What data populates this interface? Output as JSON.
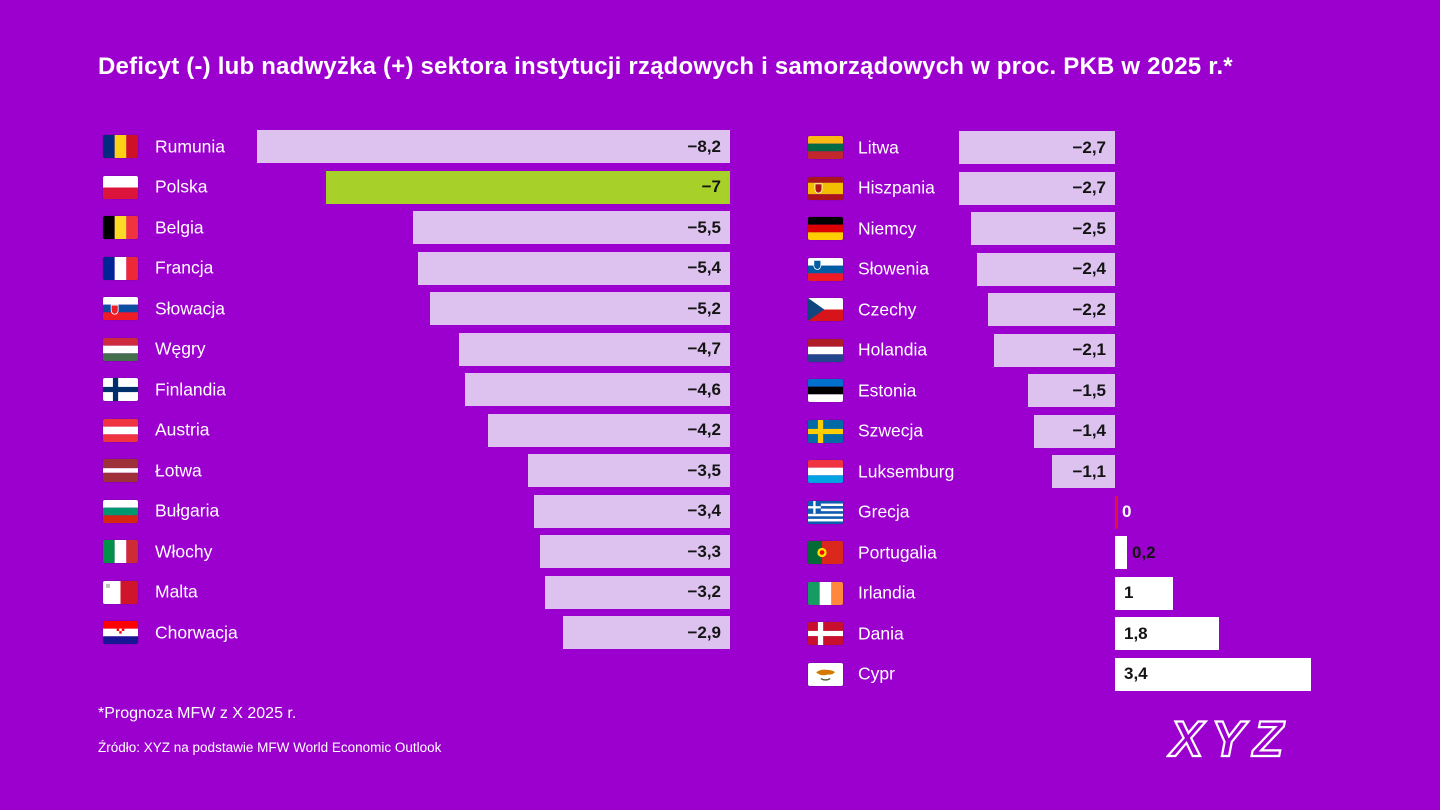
{
  "title": "Deficyt (-) lub nadwyżka (+) sektora instytucji rządowych i samorządowych w proc. PKB w 2025 r.*",
  "footnote": "*Prognoza MFW z X 2025 r.",
  "source": "Źródło: XYZ na podstawie MFW World Economic Outlook",
  "logo_text": "XYZ",
  "colors": {
    "background": "#9C00CF",
    "bar_negative": "#DDC2F0",
    "bar_positive": "#FFFFFF",
    "bar_highlight": "#A7D129",
    "zero_marker": "#E8112D",
    "text_primary": "#FFFFFF",
    "value_text": "#141414"
  },
  "chart_data": {
    "type": "bar",
    "orientation": "horizontal",
    "value_unit": "proc. PKB",
    "title": "Deficyt (-) lub nadwyżka (+) sektora instytucji rządowych i samorządowych w proc. PKB w 2025 r.*",
    "xlim": [
      -8.5,
      3.5
    ],
    "grid": false,
    "legend": false,
    "highlight_country": "Polska",
    "columns": [
      {
        "rows": [
          {
            "id": "rumunia",
            "country": "Rumunia",
            "value": -8.2,
            "label": "−8,2",
            "flag": {
              "t": "v",
              "c": [
                "#002B7F",
                "#FCD116",
                "#CE1126"
              ]
            }
          },
          {
            "id": "polska",
            "country": "Polska",
            "value": -7,
            "label": "−7",
            "highlight": true,
            "flag": {
              "t": "h",
              "c": [
                "#FFFFFF",
                "#DC143C"
              ]
            }
          },
          {
            "id": "belgia",
            "country": "Belgia",
            "value": -5.5,
            "label": "−5,5",
            "flag": {
              "t": "v",
              "c": [
                "#000000",
                "#FDDA24",
                "#EF3340"
              ]
            }
          },
          {
            "id": "francja",
            "country": "Francja",
            "value": -5.4,
            "label": "−5,4",
            "flag": {
              "t": "v",
              "c": [
                "#002395",
                "#FFFFFF",
                "#ED2939"
              ]
            }
          },
          {
            "id": "slowacja",
            "country": "Słowacja",
            "value": -5.2,
            "label": "−5,2",
            "flag": {
              "t": "h",
              "c": [
                "#FFFFFF",
                "#0B4EA2",
                "#EE1C25"
              ],
              "e": {
                "t": "shield",
                "c": "#EE1C25",
                "x": 10,
                "y": 11
              }
            }
          },
          {
            "id": "wegry",
            "country": "Węgry",
            "value": -4.7,
            "label": "−4,7",
            "flag": {
              "t": "h",
              "c": [
                "#CD2A3E",
                "#FFFFFF",
                "#436F4D"
              ]
            }
          },
          {
            "id": "finlandia",
            "country": "Finlandia",
            "value": -4.6,
            "label": "−4,6",
            "flag": {
              "t": "cross",
              "bg": "#FFFFFF",
              "cx": "#002F6C"
            }
          },
          {
            "id": "austria",
            "country": "Austria",
            "value": -4.2,
            "label": "−4,2",
            "flag": {
              "t": "h",
              "c": [
                "#EF3340",
                "#FFFFFF",
                "#EF3340"
              ]
            }
          },
          {
            "id": "lotwa",
            "country": "Łotwa",
            "value": -3.5,
            "label": "−3,5",
            "flag": {
              "t": "h",
              "c": [
                "#9E3039",
                "#FFFFFF",
                "#9E3039"
              ],
              "r": [
                2,
                1,
                2
              ]
            }
          },
          {
            "id": "bulgaria",
            "country": "Bułgaria",
            "value": -3.4,
            "label": "−3,4",
            "flag": {
              "t": "h",
              "c": [
                "#FFFFFF",
                "#00966E",
                "#D62612"
              ]
            }
          },
          {
            "id": "wlochy",
            "country": "Włochy",
            "value": -3.3,
            "label": "−3,3",
            "flag": {
              "t": "v",
              "c": [
                "#009246",
                "#FFFFFF",
                "#CE2B37"
              ]
            }
          },
          {
            "id": "malta",
            "country": "Malta",
            "value": -3.2,
            "label": "−3,2",
            "flag": {
              "t": "v",
              "c": [
                "#FFFFFF",
                "#CF142B"
              ],
              "e": {
                "t": "dot"
              }
            }
          },
          {
            "id": "chorwacja",
            "country": "Chorwacja",
            "value": -2.9,
            "label": "−2,9",
            "flag": {
              "t": "h",
              "c": [
                "#FF0000",
                "#FFFFFF",
                "#171796"
              ],
              "e": {
                "t": "checker"
              }
            }
          }
        ]
      },
      {
        "rows": [
          {
            "id": "litwa",
            "country": "Litwa",
            "value": -2.7,
            "label": "−2,7",
            "flag": {
              "t": "h",
              "c": [
                "#FDB913",
                "#006A44",
                "#C1272D"
              ]
            }
          },
          {
            "id": "hiszpania",
            "country": "Hiszpania",
            "value": -2.7,
            "label": "−2,7",
            "flag": {
              "t": "h",
              "c": [
                "#AA151B",
                "#F1BF00",
                "#AA151B"
              ],
              "r": [
                1,
                2,
                1
              ],
              "e": {
                "t": "shield",
                "c": "#AD1519",
                "x": 9,
                "y": 10
              }
            }
          },
          {
            "id": "niemcy",
            "country": "Niemcy",
            "value": -2.5,
            "label": "−2,5",
            "flag": {
              "t": "h",
              "c": [
                "#000000",
                "#DD0000",
                "#FFCE00"
              ]
            }
          },
          {
            "id": "slowenia",
            "country": "Słowenia",
            "value": -2.4,
            "label": "−2,4",
            "flag": {
              "t": "h",
              "c": [
                "#FFFFFF",
                "#005DA4",
                "#ED1C24"
              ],
              "e": {
                "t": "shield",
                "c": "#005DA4",
                "x": 8,
                "y": 6
              }
            }
          },
          {
            "id": "czechy",
            "country": "Czechy",
            "value": -2.2,
            "label": "−2,2",
            "flag": {
              "t": "czech"
            }
          },
          {
            "id": "holandia",
            "country": "Holandia",
            "value": -2.1,
            "label": "−2,1",
            "flag": {
              "t": "h",
              "c": [
                "#AE1C28",
                "#FFFFFF",
                "#21468B"
              ]
            }
          },
          {
            "id": "estonia",
            "country": "Estonia",
            "value": -1.5,
            "label": "−1,5",
            "flag": {
              "t": "h",
              "c": [
                "#0072CE",
                "#000000",
                "#FFFFFF"
              ]
            }
          },
          {
            "id": "szwecja",
            "country": "Szwecja",
            "value": -1.4,
            "label": "−1,4",
            "flag": {
              "t": "cross",
              "bg": "#006AA7",
              "cx": "#FECC02"
            }
          },
          {
            "id": "luksemburg",
            "country": "Luksemburg",
            "value": -1.1,
            "label": "−1,1",
            "flag": {
              "t": "h",
              "c": [
                "#EF3340",
                "#FFFFFF",
                "#00A2E1"
              ]
            }
          },
          {
            "id": "grecja",
            "country": "Grecja",
            "value": 0,
            "label": "0",
            "flag": {
              "t": "greece"
            }
          },
          {
            "id": "portugalia",
            "country": "Portugalia",
            "value": 0.2,
            "label": "0,2",
            "flag": {
              "t": "v",
              "c": [
                "#046A38",
                "#DA291C"
              ],
              "r": [
                2,
                3
              ],
              "e": {
                "t": "circle",
                "x": 12,
                "y": 10
              }
            }
          },
          {
            "id": "irlandia",
            "country": "Irlandia",
            "value": 1,
            "label": "1",
            "flag": {
              "t": "v",
              "c": [
                "#169B62",
                "#FFFFFF",
                "#FF883E"
              ]
            }
          },
          {
            "id": "dania",
            "country": "Dania",
            "value": 1.8,
            "label": "1,8",
            "flag": {
              "t": "cross",
              "bg": "#C8102E",
              "cx": "#FFFFFF"
            }
          },
          {
            "id": "cypr",
            "country": "Cypr",
            "value": 3.4,
            "label": "3,4",
            "flag": {
              "t": "cyprus"
            }
          }
        ]
      }
    ]
  }
}
